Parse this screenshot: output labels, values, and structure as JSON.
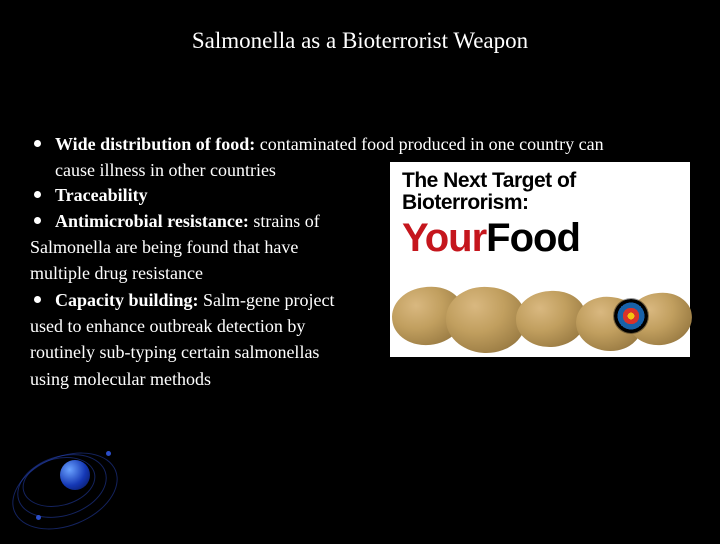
{
  "colors": {
    "background": "#000000",
    "text": "#ffffff",
    "accent_red": "#c5161d",
    "potato_light": "#d9b880",
    "potato_dark": "#6b5430",
    "ring": "#2b4ec9"
  },
  "title": "Salmonella as a Bioterrorist Weapon",
  "bullets": [
    {
      "bold": "Wide distribution of food: ",
      "rest": "contaminated food produced in one country can",
      "cont": "cause illness in other countries"
    },
    {
      "bold": "Traceability",
      "rest": "",
      "cont": ""
    },
    {
      "bold": "Antimicrobial resistance: ",
      "rest": "strains of",
      "cont": ""
    }
  ],
  "lines_after_b3": [
    "Salmonella are being found that have",
    "multiple drug resistance"
  ],
  "bullet4": {
    "bold": "Capacity building: ",
    "rest": "Salm-gene project"
  },
  "lines_after_b4": [
    "used to enhance outbreak detection by",
    "routinely sub-typing certain salmonellas",
    "using molecular methods"
  ],
  "image": {
    "headline_l1": "The Next Target of",
    "headline_l2": "Bioterrorism:",
    "word_your": "Your ",
    "word_food": "Food"
  }
}
